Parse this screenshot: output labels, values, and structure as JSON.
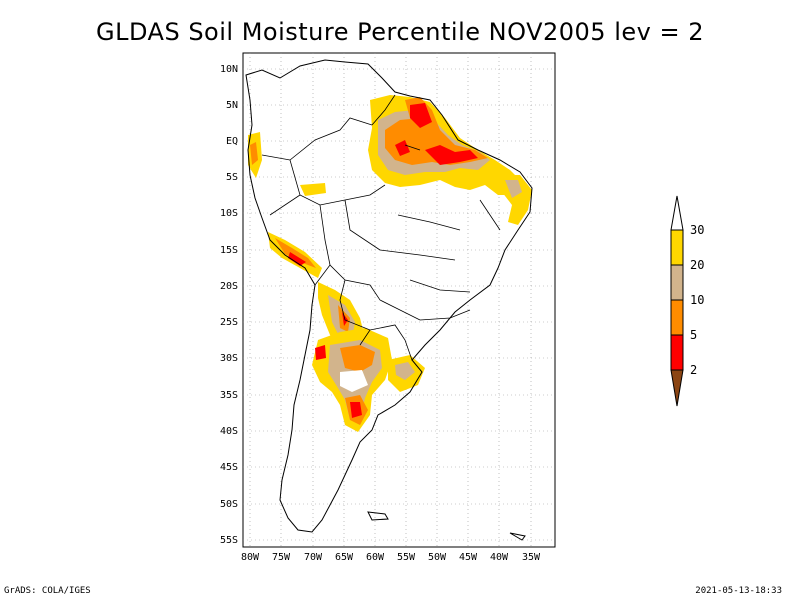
{
  "title": "GLDAS Soil Moisture Percentile NOV2005 lev = 2",
  "footer": {
    "left": "GrADS: COLA/IGES",
    "right": "2021-05-13-18:33"
  },
  "map": {
    "lat_ticks": [
      "10N",
      "5N",
      "EQ",
      "5S",
      "10S",
      "15S",
      "20S",
      "25S",
      "30S",
      "35S",
      "40S",
      "45S",
      "50S",
      "55S"
    ],
    "lon_ticks": [
      "80W",
      "75W",
      "70W",
      "65W",
      "60W",
      "55W",
      "50W",
      "45W",
      "40W",
      "35W"
    ]
  },
  "legend": {
    "labels": [
      "30",
      "20",
      "10",
      "5",
      "2"
    ],
    "colors": {
      "above_30": "#ffffff",
      "c20_30": "#ffd700",
      "c10_20": "#d2b48c",
      "c5_10": "#ff8c00",
      "c2_5": "#ff0000",
      "below_2": "#8b4513"
    }
  }
}
